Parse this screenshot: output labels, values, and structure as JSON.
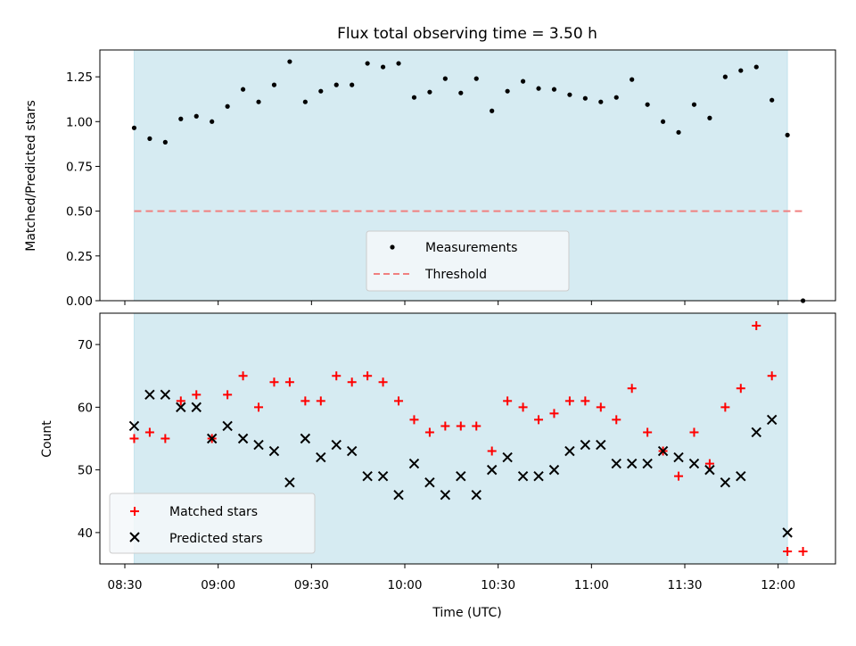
{
  "chart_data": {
    "title": "Flux total observing time = 3.50 h",
    "xlabel": "Time (UTC)",
    "x_ticks": [
      "08:30",
      "09:00",
      "09:30",
      "10:00",
      "10:30",
      "11:00",
      "11:30",
      "12:00"
    ],
    "colors": {
      "shade": "#add8e6",
      "measurement": "#000000",
      "threshold": "#f08080",
      "matched": "#ff0000",
      "predicted": "#000000"
    },
    "shaded_span": [
      "08:33",
      "12:03"
    ],
    "panels": [
      {
        "type": "scatter",
        "ylabel": "Matched/Predicted stars",
        "ylim": [
          0,
          1.4
        ],
        "y_ticks": [
          "0.00",
          "0.25",
          "0.50",
          "0.75",
          "1.00",
          "1.25"
        ],
        "legend_position": "lower center",
        "series": [
          {
            "name": "Measurements",
            "marker": "dot",
            "points": [
              [
                "08:33",
                0.965
              ],
              [
                "08:38",
                0.905
              ],
              [
                "08:43",
                0.885
              ],
              [
                "08:48",
                1.015
              ],
              [
                "08:53",
                1.03
              ],
              [
                "08:58",
                1.0
              ],
              [
                "09:03",
                1.085
              ],
              [
                "09:08",
                1.18
              ],
              [
                "09:13",
                1.11
              ],
              [
                "09:18",
                1.205
              ],
              [
                "09:23",
                1.335
              ],
              [
                "09:28",
                1.11
              ],
              [
                "09:33",
                1.17
              ],
              [
                "09:38",
                1.205
              ],
              [
                "09:43",
                1.205
              ],
              [
                "09:48",
                1.325
              ],
              [
                "09:53",
                1.305
              ],
              [
                "09:58",
                1.325
              ],
              [
                "10:03",
                1.135
              ],
              [
                "10:08",
                1.165
              ],
              [
                "10:13",
                1.24
              ],
              [
                "10:18",
                1.16
              ],
              [
                "10:23",
                1.24
              ],
              [
                "10:28",
                1.06
              ],
              [
                "10:33",
                1.17
              ],
              [
                "10:38",
                1.225
              ],
              [
                "10:43",
                1.185
              ],
              [
                "10:48",
                1.18
              ],
              [
                "10:53",
                1.15
              ],
              [
                "10:58",
                1.13
              ],
              [
                "11:03",
                1.11
              ],
              [
                "11:08",
                1.135
              ],
              [
                "11:13",
                1.235
              ],
              [
                "11:18",
                1.095
              ],
              [
                "11:23",
                1.0
              ],
              [
                "11:28",
                0.94
              ],
              [
                "11:33",
                1.095
              ],
              [
                "11:38",
                1.02
              ],
              [
                "11:43",
                1.25
              ],
              [
                "11:48",
                1.285
              ],
              [
                "11:53",
                1.305
              ],
              [
                "11:58",
                1.12
              ],
              [
                "12:03",
                0.925
              ],
              [
                "12:08",
                0.0
              ]
            ]
          },
          {
            "name": "Threshold",
            "marker": "dashed-line",
            "points": [
              [
                "08:33",
                0.5
              ],
              [
                "12:08",
                0.5
              ]
            ]
          }
        ]
      },
      {
        "type": "scatter",
        "ylabel": "Count",
        "ylim": [
          35,
          75
        ],
        "y_ticks": [
          "40",
          "50",
          "60",
          "70"
        ],
        "legend_position": "lower left",
        "series": [
          {
            "name": "Matched stars",
            "marker": "plus",
            "points": [
              [
                "08:33",
                55
              ],
              [
                "08:38",
                56
              ],
              [
                "08:43",
                55
              ],
              [
                "08:48",
                61
              ],
              [
                "08:53",
                62
              ],
              [
                "08:58",
                55
              ],
              [
                "09:03",
                62
              ],
              [
                "09:08",
                65
              ],
              [
                "09:13",
                60
              ],
              [
                "09:18",
                64
              ],
              [
                "09:23",
                64
              ],
              [
                "09:28",
                61
              ],
              [
                "09:33",
                61
              ],
              [
                "09:38",
                65
              ],
              [
                "09:43",
                64
              ],
              [
                "09:48",
                65
              ],
              [
                "09:53",
                64
              ],
              [
                "09:58",
                61
              ],
              [
                "10:03",
                58
              ],
              [
                "10:08",
                56
              ],
              [
                "10:13",
                57
              ],
              [
                "10:18",
                57
              ],
              [
                "10:23",
                57
              ],
              [
                "10:28",
                53
              ],
              [
                "10:33",
                61
              ],
              [
                "10:38",
                60
              ],
              [
                "10:43",
                58
              ],
              [
                "10:48",
                59
              ],
              [
                "10:53",
                61
              ],
              [
                "10:58",
                61
              ],
              [
                "11:03",
                60
              ],
              [
                "11:08",
                58
              ],
              [
                "11:13",
                63
              ],
              [
                "11:18",
                56
              ],
              [
                "11:23",
                53
              ],
              [
                "11:28",
                49
              ],
              [
                "11:33",
                56
              ],
              [
                "11:38",
                51
              ],
              [
                "11:43",
                60
              ],
              [
                "11:48",
                63
              ],
              [
                "11:53",
                73
              ],
              [
                "11:58",
                65
              ],
              [
                "12:03",
                37
              ],
              [
                "12:08",
                37
              ]
            ]
          },
          {
            "name": "Predicted stars",
            "marker": "x",
            "points": [
              [
                "08:33",
                57
              ],
              [
                "08:38",
                62
              ],
              [
                "08:43",
                62
              ],
              [
                "08:48",
                60
              ],
              [
                "08:53",
                60
              ],
              [
                "08:58",
                55
              ],
              [
                "09:03",
                57
              ],
              [
                "09:08",
                55
              ],
              [
                "09:13",
                54
              ],
              [
                "09:18",
                53
              ],
              [
                "09:23",
                48
              ],
              [
                "09:28",
                55
              ],
              [
                "09:33",
                52
              ],
              [
                "09:38",
                54
              ],
              [
                "09:43",
                53
              ],
              [
                "09:48",
                49
              ],
              [
                "09:53",
                49
              ],
              [
                "09:58",
                46
              ],
              [
                "10:03",
                51
              ],
              [
                "10:08",
                48
              ],
              [
                "10:13",
                46
              ],
              [
                "10:18",
                49
              ],
              [
                "10:23",
                46
              ],
              [
                "10:28",
                50
              ],
              [
                "10:33",
                52
              ],
              [
                "10:38",
                49
              ],
              [
                "10:43",
                49
              ],
              [
                "10:48",
                50
              ],
              [
                "10:53",
                53
              ],
              [
                "10:58",
                54
              ],
              [
                "11:03",
                54
              ],
              [
                "11:08",
                51
              ],
              [
                "11:13",
                51
              ],
              [
                "11:18",
                51
              ],
              [
                "11:23",
                53
              ],
              [
                "11:28",
                52
              ],
              [
                "11:33",
                51
              ],
              [
                "11:38",
                50
              ],
              [
                "11:43",
                48
              ],
              [
                "11:48",
                49
              ],
              [
                "11:53",
                56
              ],
              [
                "11:58",
                58
              ],
              [
                "12:03",
                40
              ]
            ]
          }
        ]
      }
    ]
  }
}
